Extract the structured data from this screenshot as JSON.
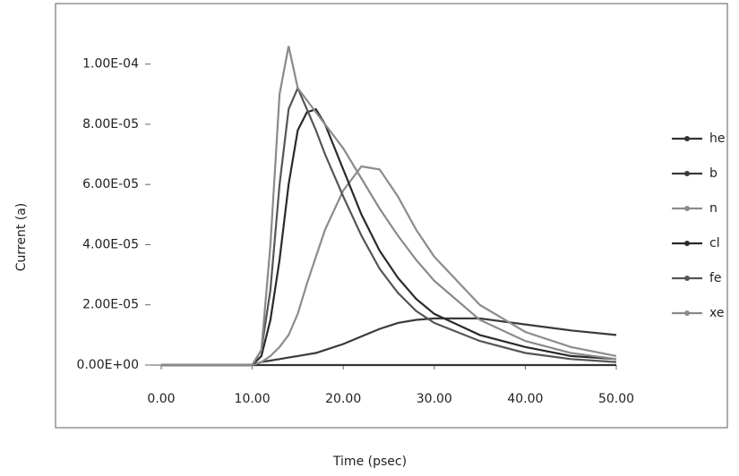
{
  "chart_data": {
    "type": "line",
    "x_label": "Time (psec)",
    "y_label": "Current (a)",
    "x": [
      0,
      10,
      11,
      12,
      13,
      14,
      15,
      16,
      17,
      18,
      20,
      22,
      24,
      26,
      28,
      30,
      35,
      40,
      45,
      50
    ],
    "series": [
      {
        "name": "he",
        "color": "#333333",
        "values": [
          0,
          0,
          0,
          0,
          0,
          0,
          0,
          0,
          0,
          0,
          0,
          0,
          0,
          0,
          0,
          0,
          0,
          0,
          0,
          0
        ]
      },
      {
        "name": "b",
        "color": "#3a3a3a",
        "values": [
          0,
          0,
          1e-06,
          1.5e-06,
          2e-06,
          2.5e-06,
          3e-06,
          3.5e-06,
          4e-06,
          5e-06,
          7e-06,
          9.5e-06,
          1.2e-05,
          1.4e-05,
          1.5e-05,
          1.55e-05,
          1.55e-05,
          1.35e-05,
          1.15e-05,
          1e-05
        ]
      },
      {
        "name": "n",
        "color": "#8c8c8c",
        "values": [
          0,
          0,
          1e-06,
          3e-06,
          6e-06,
          1e-05,
          1.7e-05,
          2.7e-05,
          3.6e-05,
          4.5e-05,
          5.8e-05,
          6.6e-05,
          6.5e-05,
          5.6e-05,
          4.5e-05,
          3.6e-05,
          2e-05,
          1.1e-05,
          6e-06,
          3e-06
        ]
      },
      {
        "name": "cl",
        "color": "#2a2a2a",
        "values": [
          0,
          0,
          3e-06,
          1.5e-05,
          3.5e-05,
          6e-05,
          7.8e-05,
          8.4e-05,
          8.5e-05,
          8e-05,
          6.5e-05,
          5e-05,
          3.8e-05,
          2.9e-05,
          2.2e-05,
          1.7e-05,
          1e-05,
          6e-06,
          3e-06,
          2e-06
        ]
      },
      {
        "name": "fe",
        "color": "#555555",
        "values": [
          0,
          0,
          5e-06,
          2.5e-05,
          6e-05,
          8.5e-05,
          9.2e-05,
          8.5e-05,
          7.8e-05,
          7e-05,
          5.6e-05,
          4.3e-05,
          3.2e-05,
          2.4e-05,
          1.8e-05,
          1.4e-05,
          8e-06,
          4e-06,
          2e-06,
          1e-06
        ]
      },
      {
        "name": "xe",
        "color": "#8a8a8a",
        "values": [
          0,
          0,
          5e-06,
          4e-05,
          9e-05,
          0.000106,
          9.2e-05,
          8.8e-05,
          8.4e-05,
          8e-05,
          7.2e-05,
          6.2e-05,
          5.2e-05,
          4.3e-05,
          3.5e-05,
          2.8e-05,
          1.5e-05,
          8e-06,
          4e-06,
          2e-06
        ]
      }
    ],
    "xlim": [
      0,
      50
    ],
    "xticks": [
      {
        "value": 0,
        "label": "0.00"
      },
      {
        "value": 10,
        "label": "10.00"
      },
      {
        "value": 20,
        "label": "20.00"
      },
      {
        "value": 30,
        "label": "30.00"
      },
      {
        "value": 40,
        "label": "40.00"
      },
      {
        "value": 50,
        "label": "50.00"
      }
    ],
    "ylim": [
      0,
      0.00011
    ],
    "yticks": [
      {
        "value": 0,
        "label": "0.00E+00"
      },
      {
        "value": 2e-05,
        "label": "2.00E-05"
      },
      {
        "value": 4e-05,
        "label": "4.00E-05"
      },
      {
        "value": 6e-05,
        "label": "6.00E-05"
      },
      {
        "value": 8e-05,
        "label": "8.00E-05"
      },
      {
        "value": 0.0001,
        "label": "1.00E-04"
      }
    ],
    "legend": "right"
  }
}
